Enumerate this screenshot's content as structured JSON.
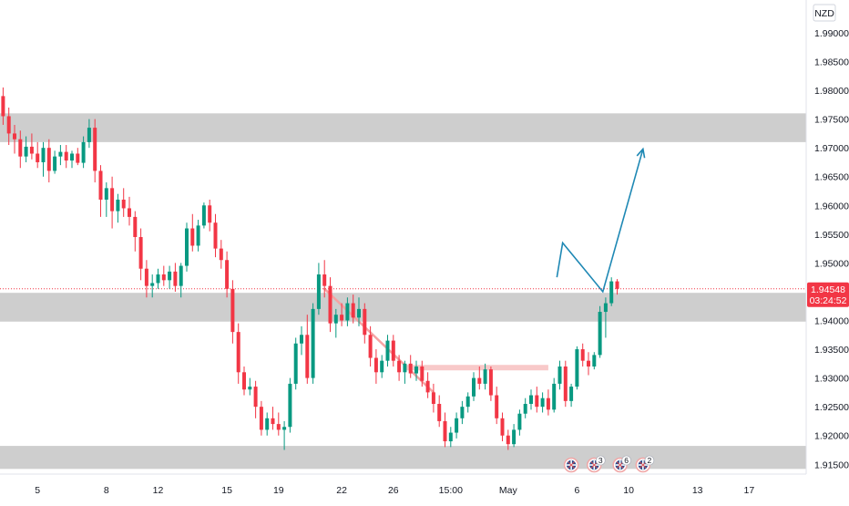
{
  "chart_data": {
    "type": "candlestick",
    "currency": "NZD",
    "current_price": "1.94548",
    "countdown": "03:24:52",
    "y_ticks": [
      "1.99000",
      "1.98500",
      "1.98000",
      "1.97500",
      "1.97000",
      "1.96500",
      "1.96000",
      "1.95500",
      "1.95000",
      "1.94500",
      "1.94000",
      "1.93500",
      "1.93000",
      "1.92500",
      "1.92000",
      "1.91500"
    ],
    "y_tick_values": [
      1.99,
      1.985,
      1.98,
      1.975,
      1.97,
      1.965,
      1.96,
      1.955,
      1.95,
      1.945,
      1.94,
      1.935,
      1.93,
      1.925,
      1.92,
      1.915
    ],
    "y_range": [
      1.9133,
      1.9957
    ],
    "x_ticks": [
      {
        "label": "5",
        "index": 6
      },
      {
        "label": "8",
        "index": 18
      },
      {
        "label": "12",
        "index": 27
      },
      {
        "label": "15",
        "index": 39
      },
      {
        "label": "19",
        "index": 48
      },
      {
        "label": "22",
        "index": 59
      },
      {
        "label": "26",
        "index": 68
      },
      {
        "label": "15:00",
        "index": 78
      },
      {
        "label": "May",
        "index": 88
      },
      {
        "label": "6",
        "index": 100
      },
      {
        "label": "10",
        "index": 109
      },
      {
        "label": "13",
        "index": 121
      },
      {
        "label": "17",
        "index": 130
      }
    ],
    "x_range": [
      0,
      140
    ],
    "zones": [
      {
        "from": 1.971,
        "to": 1.976
      },
      {
        "from": 1.9398,
        "to": 1.9448
      },
      {
        "from": 1.9142,
        "to": 1.9182
      }
    ],
    "trendline": {
      "from": {
        "index": 56,
        "price": 1.9455
      },
      "to": {
        "index": 75,
        "price": 1.9275
      }
    },
    "neckline": {
      "from_index": 70,
      "to_index": 95,
      "price": 1.9318
    },
    "projection": [
      {
        "index": 96.5,
        "price": 1.9475
      },
      {
        "index": 97.5,
        "price": 1.9535
      },
      {
        "index": 104.5,
        "price": 1.945
      },
      {
        "index": 111.5,
        "price": 1.9698
      }
    ],
    "event_markers": [
      {
        "index": 99,
        "count": ""
      },
      {
        "index": 103,
        "count": "3"
      },
      {
        "index": 107.5,
        "count": "6"
      },
      {
        "index": 111.5,
        "count": "2"
      }
    ],
    "candles": [
      [
        1.979,
        1.9805,
        1.974,
        1.9755
      ],
      [
        1.9755,
        1.977,
        1.9705,
        1.9725
      ],
      [
        1.9725,
        1.974,
        1.969,
        1.9715
      ],
      [
        1.9715,
        1.973,
        1.9665,
        1.9685
      ],
      [
        1.9685,
        1.972,
        1.9675,
        1.9702
      ],
      [
        1.9702,
        1.9725,
        1.968,
        1.969
      ],
      [
        1.969,
        1.971,
        1.9665,
        1.9675
      ],
      [
        1.9675,
        1.971,
        1.965,
        1.97
      ],
      [
        1.97,
        1.9715,
        1.964,
        1.966
      ],
      [
        1.966,
        1.9695,
        1.9655,
        1.9685
      ],
      [
        1.9685,
        1.9705,
        1.967,
        1.9693
      ],
      [
        1.9693,
        1.9705,
        1.9665,
        1.9678
      ],
      [
        1.9678,
        1.9695,
        1.9665,
        1.969
      ],
      [
        1.969,
        1.97,
        1.967,
        1.9674
      ],
      [
        1.9674,
        1.972,
        1.9665,
        1.971
      ],
      [
        1.971,
        1.975,
        1.97,
        1.9735
      ],
      [
        1.9735,
        1.975,
        1.964,
        1.966
      ],
      [
        1.966,
        1.967,
        1.958,
        1.961
      ],
      [
        1.961,
        1.964,
        1.958,
        1.963
      ],
      [
        1.963,
        1.965,
        1.956,
        1.959
      ],
      [
        1.959,
        1.962,
        1.957,
        1.961
      ],
      [
        1.961,
        1.963,
        1.958,
        1.9595
      ],
      [
        1.9595,
        1.9615,
        1.9565,
        1.958
      ],
      [
        1.958,
        1.959,
        1.952,
        1.9545
      ],
      [
        1.9545,
        1.956,
        1.947,
        1.949
      ],
      [
        1.949,
        1.9505,
        1.944,
        1.946
      ],
      [
        1.946,
        1.948,
        1.944,
        1.9465
      ],
      [
        1.9465,
        1.949,
        1.9455,
        1.948
      ],
      [
        1.948,
        1.9495,
        1.946,
        1.947
      ],
      [
        1.947,
        1.9495,
        1.9455,
        1.9485
      ],
      [
        1.9485,
        1.95,
        1.945,
        1.946
      ],
      [
        1.946,
        1.95,
        1.944,
        1.9495
      ],
      [
        1.9495,
        1.957,
        1.9485,
        1.956
      ],
      [
        1.956,
        1.9585,
        1.952,
        1.953
      ],
      [
        1.953,
        1.9575,
        1.952,
        1.9565
      ],
      [
        1.9565,
        1.9605,
        1.956,
        1.96
      ],
      [
        1.96,
        1.961,
        1.9555,
        1.957
      ],
      [
        1.957,
        1.9585,
        1.951,
        1.9525
      ],
      [
        1.9525,
        1.954,
        1.949,
        1.9505
      ],
      [
        1.9505,
        1.952,
        1.944,
        1.9455
      ],
      [
        1.9455,
        1.947,
        1.936,
        1.938
      ],
      [
        1.938,
        1.9395,
        1.929,
        1.931
      ],
      [
        1.931,
        1.932,
        1.927,
        1.928
      ],
      [
        1.928,
        1.93,
        1.927,
        1.9285
      ],
      [
        1.9285,
        1.9295,
        1.923,
        1.925
      ],
      [
        1.925,
        1.926,
        1.92,
        1.921
      ],
      [
        1.921,
        1.924,
        1.92,
        1.923
      ],
      [
        1.923,
        1.925,
        1.921,
        1.922
      ],
      [
        1.922,
        1.924,
        1.92,
        1.921
      ],
      [
        1.921,
        1.9225,
        1.9175,
        1.9215
      ],
      [
        1.9215,
        1.93,
        1.9205,
        1.929
      ],
      [
        1.929,
        1.937,
        1.928,
        1.936
      ],
      [
        1.936,
        1.939,
        1.934,
        1.9375
      ],
      [
        1.9375,
        1.941,
        1.929,
        1.93
      ],
      [
        1.93,
        1.943,
        1.929,
        1.942
      ],
      [
        1.942,
        1.95,
        1.941,
        1.948
      ],
      [
        1.948,
        1.9505,
        1.944,
        1.946
      ],
      [
        1.946,
        1.9475,
        1.938,
        1.9395
      ],
      [
        1.9395,
        1.942,
        1.937,
        1.941
      ],
      [
        1.941,
        1.943,
        1.939,
        1.94
      ],
      [
        1.94,
        1.944,
        1.939,
        1.943
      ],
      [
        1.943,
        1.9445,
        1.9395,
        1.9405
      ],
      [
        1.9405,
        1.944,
        1.939,
        1.942
      ],
      [
        1.942,
        1.943,
        1.936,
        1.9375
      ],
      [
        1.9375,
        1.939,
        1.932,
        1.9335
      ],
      [
        1.9335,
        1.935,
        1.929,
        1.931
      ],
      [
        1.931,
        1.934,
        1.93,
        1.933
      ],
      [
        1.933,
        1.9375,
        1.932,
        1.9365
      ],
      [
        1.9365,
        1.9375,
        1.932,
        1.933
      ],
      [
        1.933,
        1.934,
        1.9295,
        1.931
      ],
      [
        1.931,
        1.933,
        1.929,
        1.9325
      ],
      [
        1.9325,
        1.934,
        1.93,
        1.9308
      ],
      [
        1.9308,
        1.933,
        1.9295,
        1.932
      ],
      [
        1.932,
        1.933,
        1.9285,
        1.9295
      ],
      [
        1.9295,
        1.931,
        1.9265,
        1.9275
      ],
      [
        1.9275,
        1.929,
        1.924,
        1.9255
      ],
      [
        1.9255,
        1.927,
        1.9215,
        1.9225
      ],
      [
        1.9225,
        1.924,
        1.918,
        1.919
      ],
      [
        1.919,
        1.9215,
        1.918,
        1.9205
      ],
      [
        1.9205,
        1.924,
        1.9195,
        1.923
      ],
      [
        1.923,
        1.926,
        1.922,
        1.925
      ],
      [
        1.925,
        1.9275,
        1.924,
        1.9268
      ],
      [
        1.9268,
        1.931,
        1.926,
        1.93
      ],
      [
        1.93,
        1.932,
        1.928,
        1.929
      ],
      [
        1.929,
        1.9325,
        1.928,
        1.9315
      ],
      [
        1.9315,
        1.932,
        1.926,
        1.927
      ],
      [
        1.927,
        1.9285,
        1.922,
        1.923
      ],
      [
        1.923,
        1.924,
        1.919,
        1.92
      ],
      [
        1.92,
        1.921,
        1.9175,
        1.9185
      ],
      [
        1.9185,
        1.922,
        1.918,
        1.921
      ],
      [
        1.921,
        1.9245,
        1.92,
        1.9238
      ],
      [
        1.9238,
        1.9265,
        1.923,
        1.9255
      ],
      [
        1.9255,
        1.928,
        1.9245,
        1.927
      ],
      [
        1.927,
        1.9285,
        1.924,
        1.925
      ],
      [
        1.925,
        1.9275,
        1.924,
        1.9265
      ],
      [
        1.9265,
        1.928,
        1.9235,
        1.9245
      ],
      [
        1.9245,
        1.93,
        1.924,
        1.929
      ],
      [
        1.929,
        1.933,
        1.928,
        1.932
      ],
      [
        1.932,
        1.933,
        1.925,
        1.926
      ],
      [
        1.926,
        1.929,
        1.925,
        1.9285
      ],
      [
        1.9285,
        1.9355,
        1.928,
        1.935
      ],
      [
        1.935,
        1.936,
        1.932,
        1.933
      ],
      [
        1.933,
        1.9345,
        1.9305,
        1.932
      ],
      [
        1.932,
        1.9345,
        1.9315,
        1.934
      ],
      [
        1.934,
        1.9425,
        1.9335,
        1.9415
      ],
      [
        1.9415,
        1.944,
        1.937,
        1.943
      ],
      [
        1.943,
        1.9475,
        1.9425,
        1.9468
      ],
      [
        1.9468,
        1.9472,
        1.9445,
        1.9455
      ]
    ]
  }
}
